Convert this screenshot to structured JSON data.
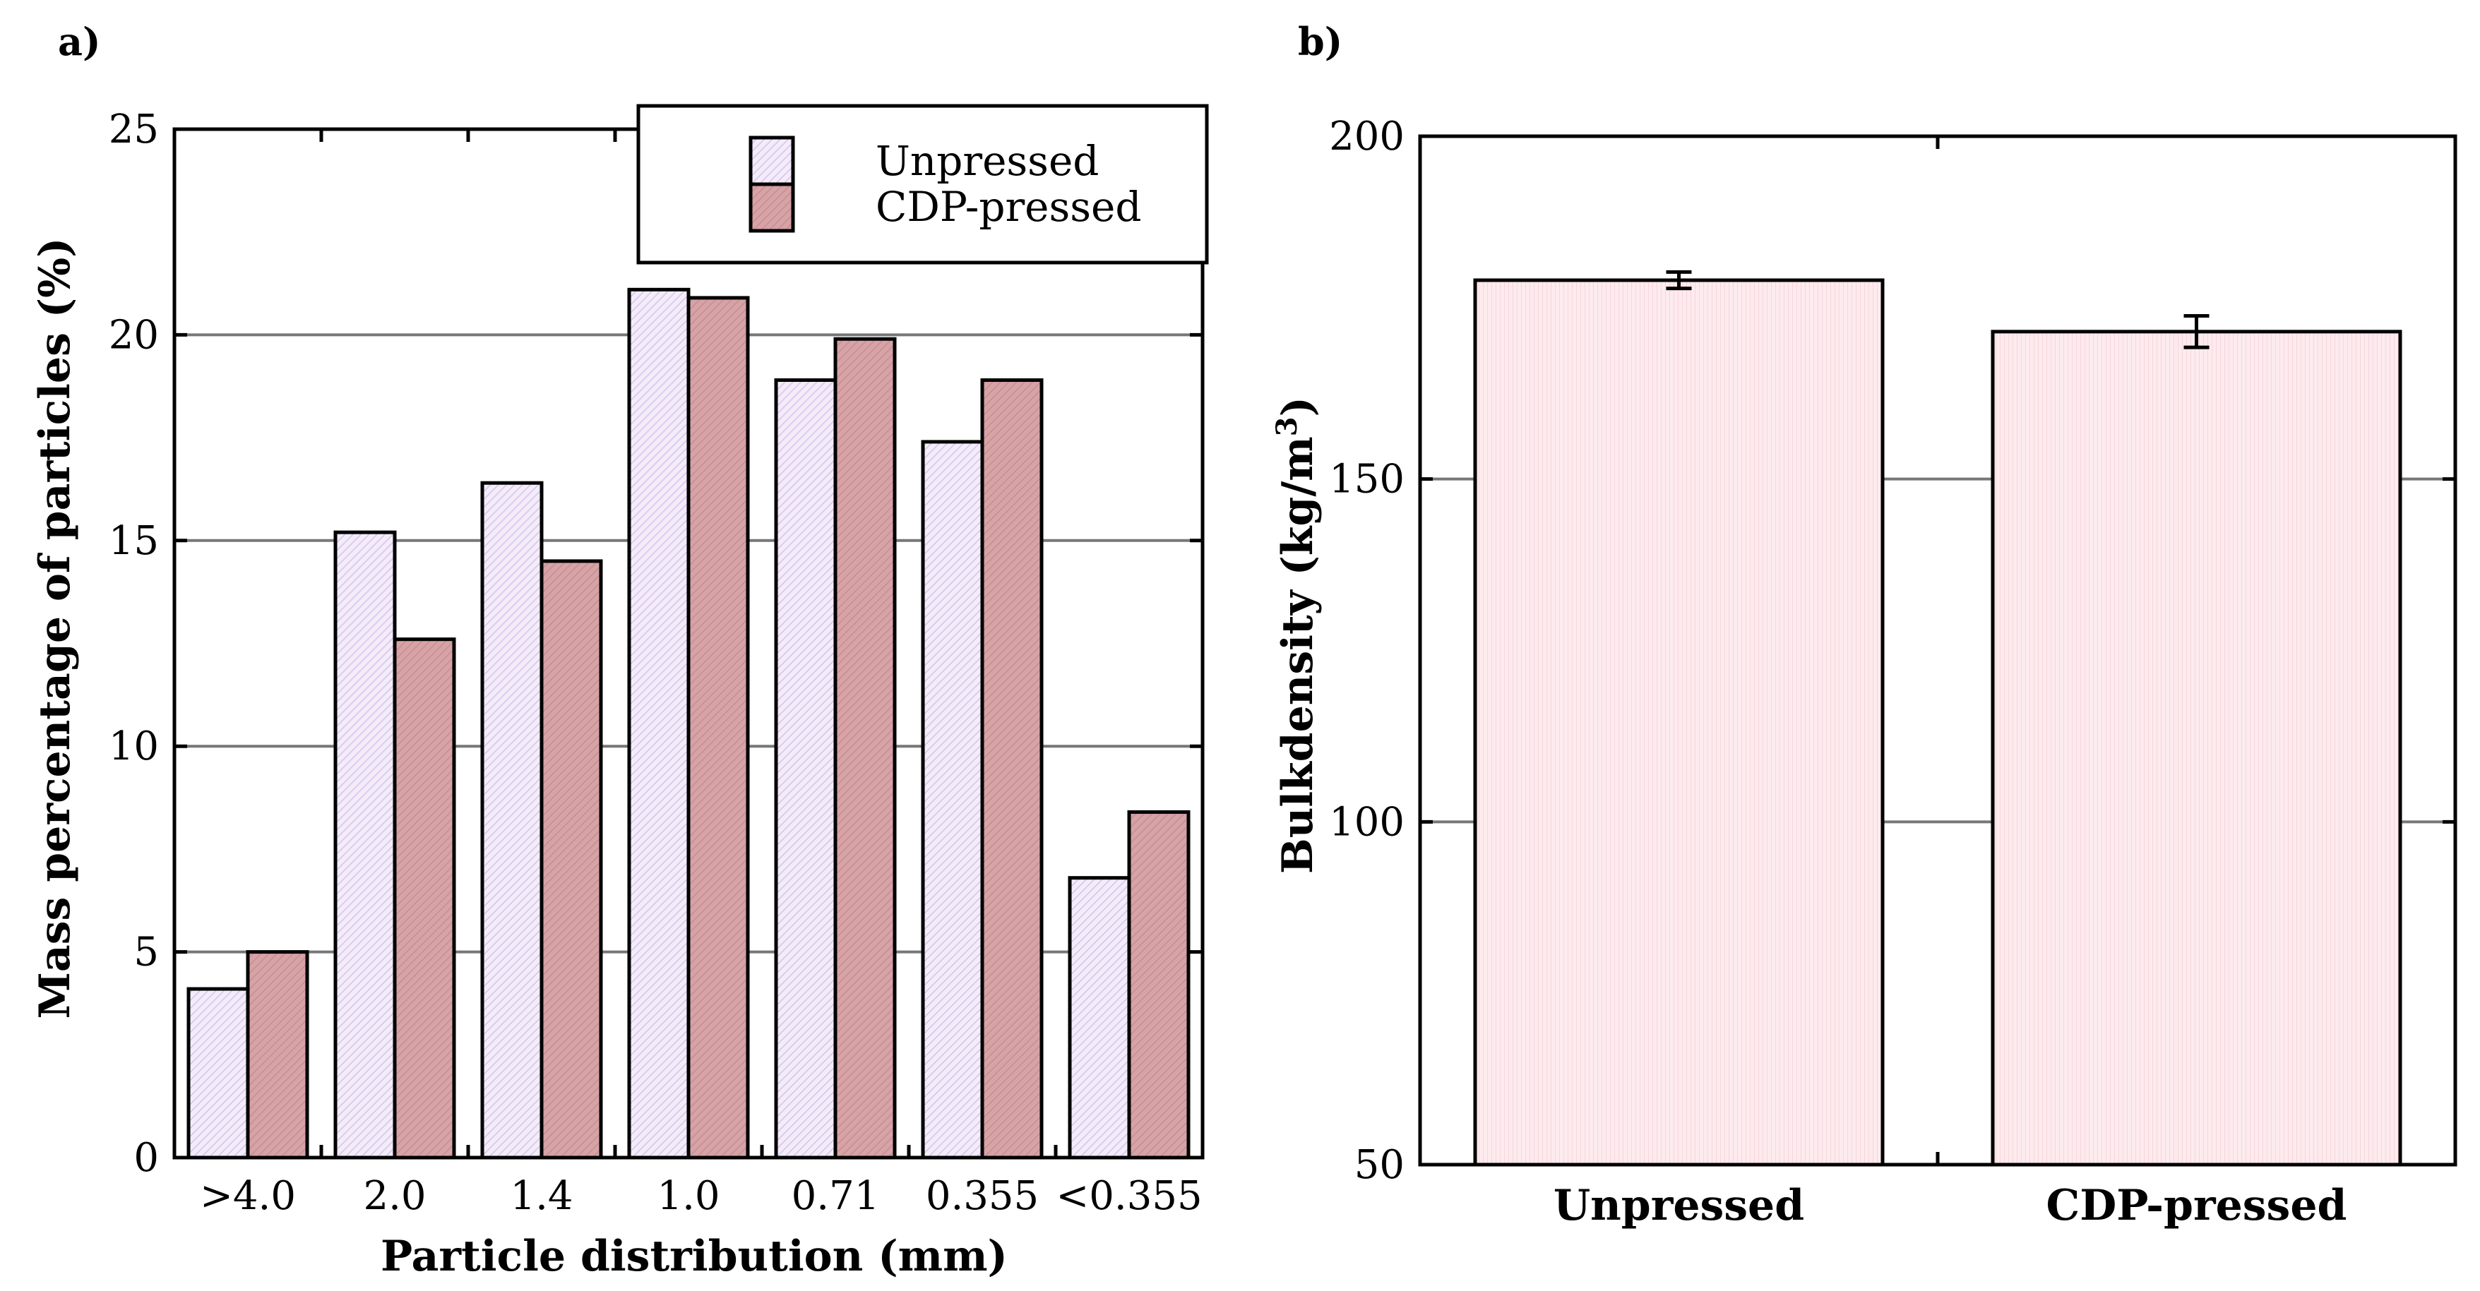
{
  "chart_data": [
    {
      "panel": "a)",
      "type": "bar",
      "xlabel": "Particle distribution (mm)",
      "ylabel": "Mass percentage of particles (%)",
      "categories": [
        ">4.0",
        "2.0",
        "1.4",
        "1.0",
        "0.71",
        "0.355",
        "<0.355"
      ],
      "series": [
        {
          "name": "Unpressed",
          "values": [
            4.1,
            15.2,
            16.4,
            21.1,
            18.9,
            17.4,
            6.8
          ],
          "color": "#f1e8f8"
        },
        {
          "name": "CDP-pressed",
          "values": [
            5.0,
            12.6,
            14.5,
            20.9,
            19.9,
            18.9,
            8.4
          ],
          "color": "#d4a0a3"
        }
      ],
      "ylim": [
        0,
        25
      ],
      "yticks": [
        "0",
        "5",
        "10",
        "15",
        "20",
        "25"
      ],
      "grid": true,
      "legend": "top-right"
    },
    {
      "panel": "b)",
      "type": "bar",
      "xlabel": "",
      "ylabel": "Bulkdensity (kg/m",
      "ylabel_superscript": "3",
      "ylabel_close": ")",
      "categories": [
        "Unpressed",
        "CDP-pressed"
      ],
      "values": [
        179,
        171.5
      ],
      "errors": [
        1.2,
        2.3
      ],
      "color": "#fde9ec",
      "ylim": [
        50,
        200
      ],
      "yticks": [
        "50",
        "100",
        "150",
        "200"
      ],
      "grid": true
    }
  ]
}
